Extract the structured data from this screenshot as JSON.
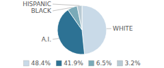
{
  "chart_data": {
    "type": "pie",
    "categories": [
      "WHITE",
      "A.I.",
      "BLACK",
      "HISPANIC"
    ],
    "values": [
      48.4,
      41.9,
      6.5,
      3.2
    ],
    "value_labels": [
      "48.4%",
      "41.9%",
      "6.5%",
      "3.2%"
    ],
    "colors": [
      "#c9dae8",
      "#2d7294",
      "#7aaab8",
      "#b8cad4"
    ],
    "legend": "bottom"
  }
}
